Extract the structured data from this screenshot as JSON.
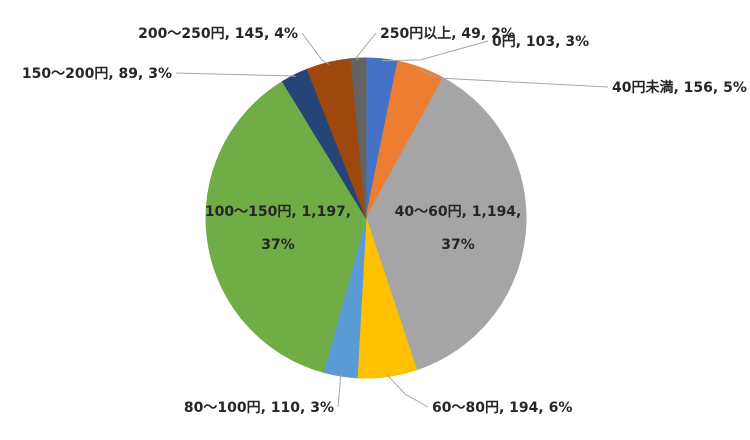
{
  "chart_data": {
    "type": "pie",
    "start_angle_deg": 0,
    "direction": "clockwise",
    "slices": [
      {
        "label": "0円",
        "value": 103,
        "percent": "3%",
        "color": "#4472c4",
        "display": "0円, 103, 3%"
      },
      {
        "label": "40円未満",
        "value": 156,
        "percent": "5%",
        "color": "#ed7d31",
        "display": "40円未満, 156, 5%"
      },
      {
        "label": "40〜60円",
        "value": 1194,
        "percent": "37%",
        "color": "#a5a5a5",
        "display": [
          "40〜60円, 1,194,",
          "37%"
        ]
      },
      {
        "label": "60〜80円",
        "value": 194,
        "percent": "6%",
        "color": "#ffc000",
        "display": "60〜80円, 194, 6%"
      },
      {
        "label": "80〜100円",
        "value": 110,
        "percent": "3%",
        "color": "#5b9bd5",
        "display": "80〜100円, 110, 3%"
      },
      {
        "label": "100〜150円",
        "value": 1197,
        "percent": "37%",
        "color": "#70ad47",
        "display": [
          "100〜150円, 1,197,",
          "37%"
        ]
      },
      {
        "label": "150〜200円",
        "value": 89,
        "percent": "3%",
        "color": "#264478",
        "display": "150〜200円, 89, 3%"
      },
      {
        "label": "200〜250円",
        "value": 145,
        "percent": "4%",
        "color": "#9e480e",
        "display": "200〜250円, 145, 4%"
      },
      {
        "label": "250円以上",
        "value": 49,
        "percent": "2%",
        "color": "#636363",
        "display": "250円以上, 49, 2%"
      }
    ],
    "legend": "none"
  }
}
